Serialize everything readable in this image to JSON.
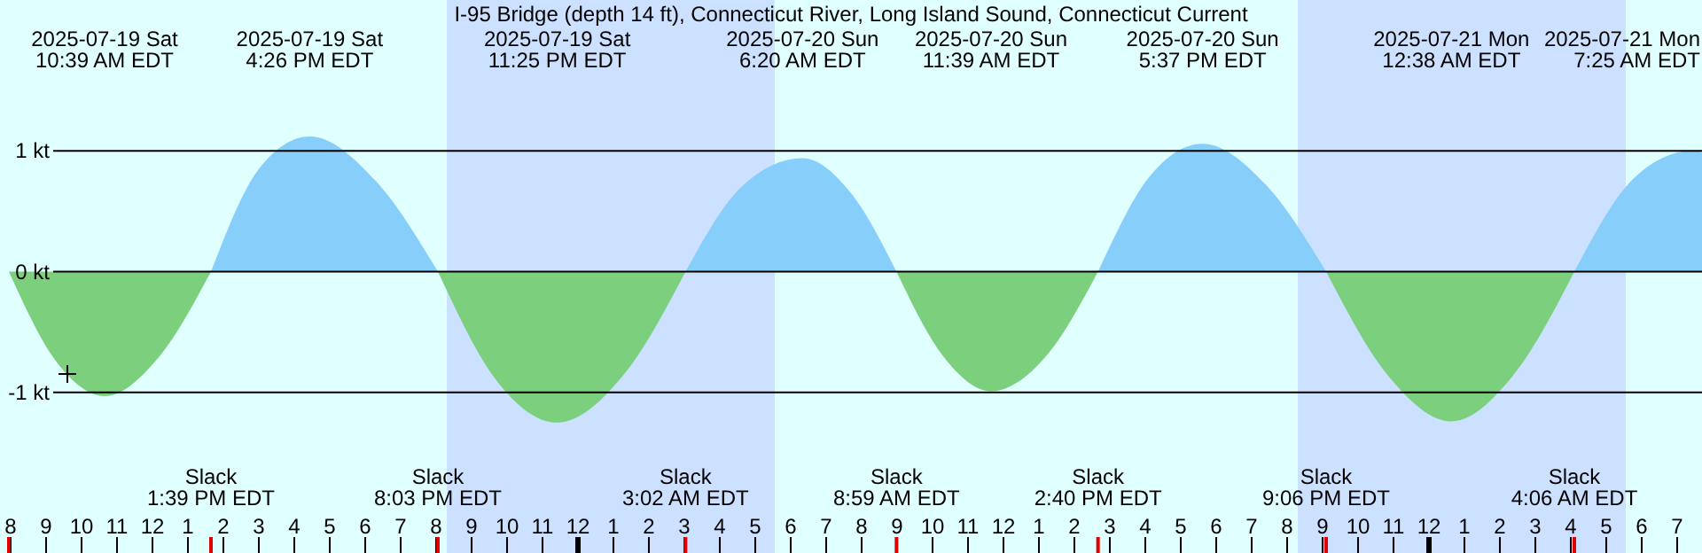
{
  "chart_data": {
    "type": "area",
    "title": "I-95 Bridge (depth 14 ft), Connecticut River, Long Island Sound, Connecticut Current",
    "x": [
      "2025-07-19T07:57",
      "2025-07-19T09:18",
      "2025-07-19T10:39",
      "2025-07-19T12:12",
      "2025-07-19T13:39",
      "2025-07-19T15:00",
      "2025-07-19T16:26",
      "2025-07-19T18:18",
      "2025-07-19T20:03",
      "2025-07-19T21:42",
      "2025-07-19T23:25",
      "2025-07-20T01:18",
      "2025-07-20T03:02",
      "2025-07-20T04:36",
      "2025-07-20T06:20",
      "2025-07-20T07:42",
      "2025-07-20T08:59",
      "2025-07-20T10:18",
      "2025-07-20T11:39",
      "2025-07-20T13:12",
      "2025-07-20T14:40",
      "2025-07-20T16:06",
      "2025-07-20T17:37",
      "2025-07-20T19:24",
      "2025-07-20T21:06",
      "2025-07-20T22:54",
      "2025-07-21T00:38",
      "2025-07-21T02:24",
      "2025-07-21T04:06",
      "2025-07-21T05:48",
      "2025-07-21T07:25",
      "2025-07-21T07:42"
    ],
    "series": [
      {
        "color": "#87cefa",
        "values": [
          null,
          null,
          null,
          null,
          0,
          0.85,
          1.12,
          0.75,
          0,
          null,
          null,
          null,
          0,
          0.7,
          0.94,
          0.65,
          0,
          null,
          null,
          null,
          0,
          0.78,
          1.06,
          0.72,
          0,
          null,
          null,
          null,
          0,
          0.78,
          1.0,
          0.99
        ]
      },
      {
        "color": "#7ccf7c",
        "values": [
          0,
          -0.75,
          -1.03,
          -0.7,
          0,
          null,
          null,
          null,
          0,
          -0.9,
          -1.25,
          -0.85,
          0,
          null,
          null,
          null,
          0,
          -0.7,
          -0.99,
          -0.7,
          0,
          null,
          null,
          null,
          0,
          -0.88,
          -1.24,
          -0.85,
          0,
          null,
          null,
          null
        ]
      }
    ],
    "xlim": [
      "2025-07-19T07:42",
      "2025-07-21T07:42"
    ],
    "xticks": [
      {
        "value": "2025-07-19T08:00",
        "label": "8"
      },
      {
        "value": "2025-07-19T09:00",
        "label": "9"
      },
      {
        "value": "2025-07-19T10:00",
        "label": "10"
      },
      {
        "value": "2025-07-19T11:00",
        "label": "11"
      },
      {
        "value": "2025-07-19T12:00",
        "label": "12"
      },
      {
        "value": "2025-07-19T13:00",
        "label": "1"
      },
      {
        "value": "2025-07-19T14:00",
        "label": "2"
      },
      {
        "value": "2025-07-19T15:00",
        "label": "3"
      },
      {
        "value": "2025-07-19T16:00",
        "label": "4"
      },
      {
        "value": "2025-07-19T17:00",
        "label": "5"
      },
      {
        "value": "2025-07-19T18:00",
        "label": "6"
      },
      {
        "value": "2025-07-19T19:00",
        "label": "7"
      },
      {
        "value": "2025-07-19T20:00",
        "label": "8"
      },
      {
        "value": "2025-07-19T21:00",
        "label": "9"
      },
      {
        "value": "2025-07-19T22:00",
        "label": "10"
      },
      {
        "value": "2025-07-19T23:00",
        "label": "11"
      },
      {
        "value": "2025-07-20T00:00",
        "label": "12"
      },
      {
        "value": "2025-07-20T01:00",
        "label": "1"
      },
      {
        "value": "2025-07-20T02:00",
        "label": "2"
      },
      {
        "value": "2025-07-20T03:00",
        "label": "3"
      },
      {
        "value": "2025-07-20T04:00",
        "label": "4"
      },
      {
        "value": "2025-07-20T05:00",
        "label": "5"
      },
      {
        "value": "2025-07-20T06:00",
        "label": "6"
      },
      {
        "value": "2025-07-20T07:00",
        "label": "7"
      },
      {
        "value": "2025-07-20T08:00",
        "label": "8"
      },
      {
        "value": "2025-07-20T09:00",
        "label": "9"
      },
      {
        "value": "2025-07-20T10:00",
        "label": "10"
      },
      {
        "value": "2025-07-20T11:00",
        "label": "11"
      },
      {
        "value": "2025-07-20T12:00",
        "label": "12"
      },
      {
        "value": "2025-07-20T13:00",
        "label": "1"
      },
      {
        "value": "2025-07-20T14:00",
        "label": "2"
      },
      {
        "value": "2025-07-20T15:00",
        "label": "3"
      },
      {
        "value": "2025-07-20T16:00",
        "label": "4"
      },
      {
        "value": "2025-07-20T17:00",
        "label": "5"
      },
      {
        "value": "2025-07-20T18:00",
        "label": "6"
      },
      {
        "value": "2025-07-20T19:00",
        "label": "7"
      },
      {
        "value": "2025-07-20T20:00",
        "label": "8"
      },
      {
        "value": "2025-07-20T21:00",
        "label": "9"
      },
      {
        "value": "2025-07-20T22:00",
        "label": "10"
      },
      {
        "value": "2025-07-20T23:00",
        "label": "11"
      },
      {
        "value": "2025-07-21T00:00",
        "label": "12"
      },
      {
        "value": "2025-07-21T01:00",
        "label": "1"
      },
      {
        "value": "2025-07-21T02:00",
        "label": "2"
      },
      {
        "value": "2025-07-21T03:00",
        "label": "3"
      },
      {
        "value": "2025-07-21T04:00",
        "label": "4"
      },
      {
        "value": "2025-07-21T05:00",
        "label": "5"
      },
      {
        "value": "2025-07-21T06:00",
        "label": "6"
      },
      {
        "value": "2025-07-21T07:00",
        "label": "7"
      }
    ],
    "ylim": [
      -2.33,
      2.25
    ],
    "yticks": [
      {
        "value": 1,
        "label": "1 kt"
      },
      {
        "value": 0,
        "label": "0 kt"
      },
      {
        "value": -1,
        "label": "-1 kt"
      }
    ],
    "grid": "y",
    "bands": [
      {
        "axis": "x",
        "from": "2025-07-19T20:18",
        "to": "2025-07-20T05:33",
        "color": "#cce0ff"
      },
      {
        "axis": "x",
        "from": "2025-07-20T20:18",
        "to": "2025-07-21T05:33",
        "color": "#cce0ff"
      }
    ],
    "annotations": [
      "2025-07-19 Sat\n10:39 AM EDT",
      "2025-07-19 Sat\n4:26 PM EDT",
      "2025-07-19 Sat\n11:25 PM EDT",
      "2025-07-20 Sun\n6:20 AM EDT",
      "2025-07-20 Sun\n11:39 AM EDT",
      "2025-07-20 Sun\n5:37 PM EDT",
      "2025-07-21 Mon\n12:38 AM EDT",
      "2025-07-21 Mon\n7:25 AM EDT",
      "Slack\n1:39 PM EDT",
      "Slack\n8:03 PM EDT",
      "Slack\n3:02 AM EDT",
      "Slack\n8:59 AM EDT",
      "Slack\n2:40 PM EDT",
      "Slack\n9:06 PM EDT",
      "Slack\n4:06 AM EDT"
    ]
  }
}
